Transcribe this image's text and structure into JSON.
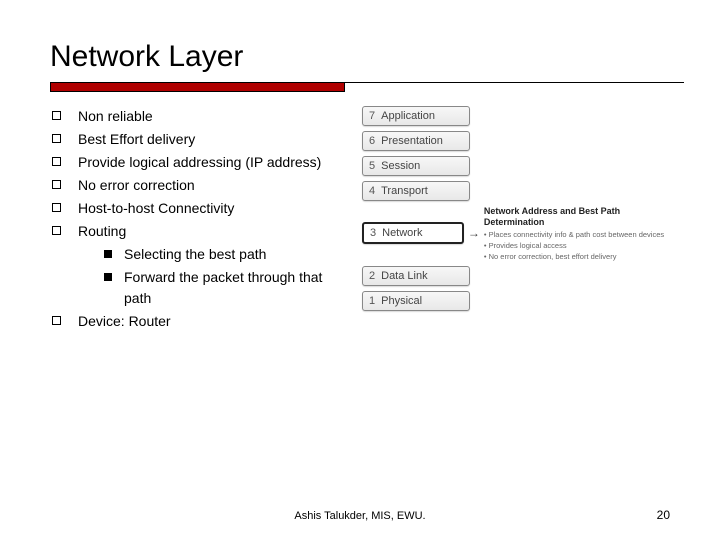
{
  "title": "Network Layer",
  "bullets": [
    "Non reliable",
    "Best Effort delivery",
    "Provide logical addressing (IP address)",
    "No error correction",
    "Host-to-host Connectivity",
    "Routing",
    "Device: Router"
  ],
  "routing_sub": [
    "Selecting the best path",
    "Forward the packet through that path"
  ],
  "osi": {
    "layers": [
      {
        "num": "7",
        "label": "Application"
      },
      {
        "num": "6",
        "label": "Presentation"
      },
      {
        "num": "5",
        "label": "Session"
      },
      {
        "num": "4",
        "label": "Transport"
      },
      {
        "num": "3",
        "label": "Network"
      },
      {
        "num": "2",
        "label": "Data Link"
      },
      {
        "num": "1",
        "label": "Physical"
      }
    ],
    "highlight_index": 4,
    "note_title": "Network Address and Best Path Determination",
    "note_lines": [
      "• Places connectivity info & path cost between devices",
      "• Provides logical access",
      "• No error correction, best effort delivery"
    ]
  },
  "footer": "Ashis Talukder, MIS, EWU.",
  "page_number": "20",
  "colors": {
    "rule": "#b00000",
    "text": "#000000"
  }
}
